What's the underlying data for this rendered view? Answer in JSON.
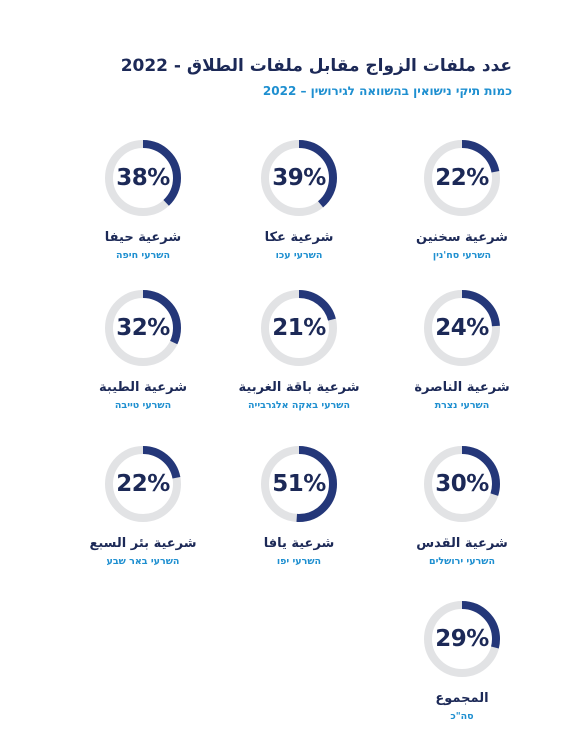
{
  "header": {
    "title": "عدد ملفات الزواج مقابل ملفات الطلاق  - 2022",
    "subtitle": "כמות תיקי נישואין בהשוואה לגירושין – 2022"
  },
  "colors": {
    "ring_fill": "#243779",
    "ring_track": "#e2e3e5",
    "arabic_label": "#1c2957",
    "hebrew_label": "#1e8fd0"
  },
  "chart_data": {
    "type": "donut",
    "title": "عدد ملفات الزواج مقابل ملفات الطلاق  - 2022",
    "subtitle": "כמות תיקי נישואין בהשוואה לגירושין – 2022",
    "unit": "%",
    "items": [
      {
        "label_ar": "شرعية سخنين",
        "label_he": "השרעי סח'נין",
        "value": 22,
        "display": "22%"
      },
      {
        "label_ar": "شرعية عكا",
        "label_he": "השרעי עכו",
        "value": 39,
        "display": "39%"
      },
      {
        "label_ar": "شرعية حيفا",
        "label_he": "השרעי חיפה",
        "value": 38,
        "display": "38%"
      },
      {
        "label_ar": "شرعية الناصرة",
        "label_he": "השרעי נצרת",
        "value": 24,
        "display": "24%"
      },
      {
        "label_ar": "شرعية باقة الغربية",
        "label_he": "השרעי באקה אלגרבייה",
        "value": 21,
        "display": "21%"
      },
      {
        "label_ar": "شرعية الطيبة",
        "label_he": "השרעי טייבה",
        "value": 32,
        "display": "32%"
      },
      {
        "label_ar": "شرعية القدس",
        "label_he": "השרעי ירושלים",
        "value": 30,
        "display": "30%"
      },
      {
        "label_ar": "شرعية يافا",
        "label_he": "השרעי יפו",
        "value": 51,
        "display": "51%"
      },
      {
        "label_ar": "شرعية بئر السبع",
        "label_he": "השרעי באר שבע",
        "value": 22,
        "display": "22%"
      },
      {
        "label_ar": "المجموع",
        "label_he": "סה\"כ",
        "value": 29,
        "display": "29%"
      }
    ]
  }
}
